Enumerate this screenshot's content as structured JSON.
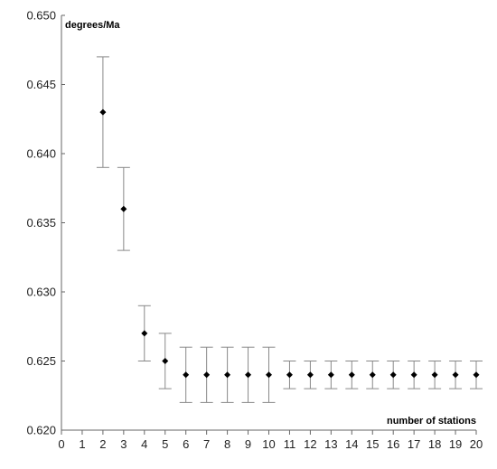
{
  "chart_data": {
    "type": "scatter",
    "title": "",
    "xlabel": "number of stations",
    "ylabel": "degrees/Ma",
    "xlim": [
      0,
      20
    ],
    "ylim": [
      0.62,
      0.65
    ],
    "x_ticks": [
      "0",
      "1",
      "2",
      "3",
      "4",
      "5",
      "6",
      "7",
      "8",
      "9",
      "10",
      "11",
      "12",
      "13",
      "14",
      "15",
      "16",
      "17",
      "18",
      "19",
      "20"
    ],
    "y_ticks": [
      "0.620",
      "0.625",
      "0.630",
      "0.635",
      "0.640",
      "0.645",
      "0.650"
    ],
    "grid": false,
    "series": [
      {
        "marker": "diamond",
        "color": "#000000",
        "error_bar_color": "#888888",
        "points": [
          {
            "x": 2,
            "y": 0.643,
            "low": 0.639,
            "high": 0.647
          },
          {
            "x": 3,
            "y": 0.636,
            "low": 0.633,
            "high": 0.639
          },
          {
            "x": 4,
            "y": 0.627,
            "low": 0.625,
            "high": 0.629
          },
          {
            "x": 5,
            "y": 0.625,
            "low": 0.623,
            "high": 0.627
          },
          {
            "x": 6,
            "y": 0.624,
            "low": 0.622,
            "high": 0.626
          },
          {
            "x": 7,
            "y": 0.624,
            "low": 0.622,
            "high": 0.626
          },
          {
            "x": 8,
            "y": 0.624,
            "low": 0.622,
            "high": 0.626
          },
          {
            "x": 9,
            "y": 0.624,
            "low": 0.622,
            "high": 0.626
          },
          {
            "x": 10,
            "y": 0.624,
            "low": 0.622,
            "high": 0.626
          },
          {
            "x": 11,
            "y": 0.624,
            "low": 0.623,
            "high": 0.625
          },
          {
            "x": 12,
            "y": 0.624,
            "low": 0.623,
            "high": 0.625
          },
          {
            "x": 13,
            "y": 0.624,
            "low": 0.623,
            "high": 0.625
          },
          {
            "x": 14,
            "y": 0.624,
            "low": 0.623,
            "high": 0.625
          },
          {
            "x": 15,
            "y": 0.624,
            "low": 0.623,
            "high": 0.625
          },
          {
            "x": 16,
            "y": 0.624,
            "low": 0.623,
            "high": 0.625
          },
          {
            "x": 17,
            "y": 0.624,
            "low": 0.623,
            "high": 0.625
          },
          {
            "x": 18,
            "y": 0.624,
            "low": 0.623,
            "high": 0.625
          },
          {
            "x": 19,
            "y": 0.624,
            "low": 0.623,
            "high": 0.625
          },
          {
            "x": 20,
            "y": 0.624,
            "low": 0.623,
            "high": 0.625
          }
        ]
      }
    ]
  }
}
